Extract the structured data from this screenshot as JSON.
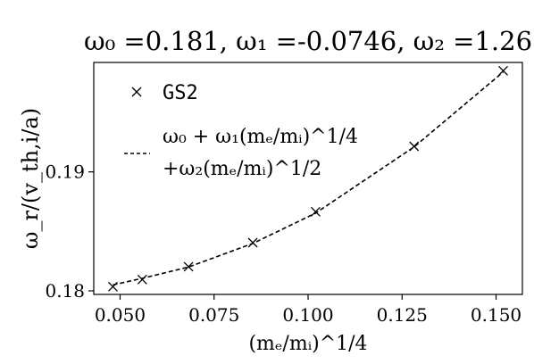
{
  "chart_data": {
    "type": "scatter",
    "title": "ω₀ =0.181, ω₁ =-0.0746, ω₂ =1.26",
    "xlabel": "(mₑ/mᵢ)^1/4",
    "ylabel": "ω_r/(v_th,i/a)",
    "xlim": [
      0.043,
      0.157
    ],
    "ylim": [
      0.1797,
      0.1992
    ],
    "x_ticks": [
      0.05,
      0.075,
      0.1,
      0.125,
      0.15
    ],
    "x_tick_labels": [
      "0.050",
      "0.075",
      "0.100",
      "0.125",
      "0.150"
    ],
    "y_ticks": [
      0.18,
      0.19
    ],
    "y_tick_labels": [
      "0.18",
      "0.19"
    ],
    "grid": false,
    "legend_position": "upper-left",
    "series": [
      {
        "name": "GS2",
        "marker": "x",
        "line": "none",
        "color": "#000000",
        "x": [
          0.0481,
          0.0559,
          0.0682,
          0.0853,
          0.102,
          0.1282,
          0.1519
        ],
        "y": [
          0.18035,
          0.18095,
          0.18203,
          0.18405,
          0.18665,
          0.19215,
          0.1985
        ]
      },
      {
        "name": "ω₀ + ω₁(mₑ/mᵢ)^1/4 +ω₂(mₑ/mᵢ)^1/2",
        "legend_lines": [
          "ω₀ + ω₁(mₑ/mᵢ)^1/4",
          "+ω₂(mₑ/mᵢ)^1/2"
        ],
        "marker": "none",
        "line": "dashed",
        "color": "#000000",
        "x": [
          0.0481,
          0.0559,
          0.0682,
          0.0853,
          0.102,
          0.1282,
          0.1519
        ],
        "y": [
          0.1805,
          0.18105,
          0.182,
          0.18398,
          0.18653,
          0.1921,
          0.1984
        ]
      }
    ]
  }
}
